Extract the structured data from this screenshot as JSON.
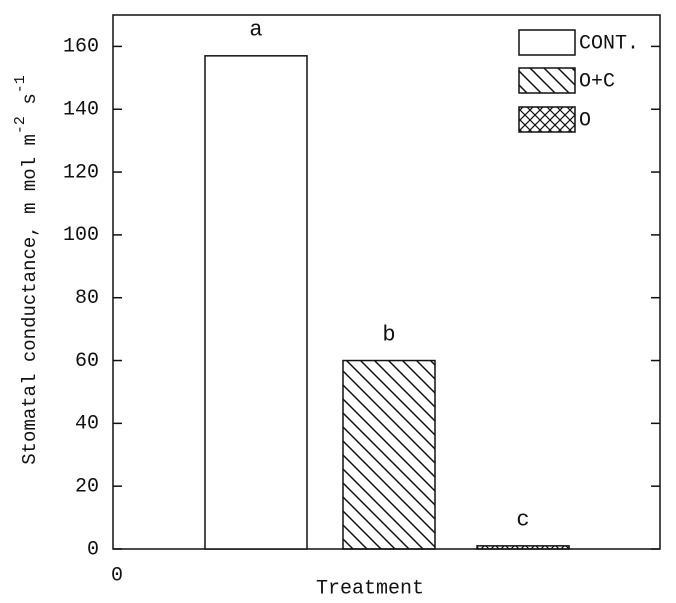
{
  "chart_data": {
    "type": "bar",
    "ylabel": [
      {
        "text": "Stomatal conductance, m mol m"
      },
      {
        "text": "-2",
        "sup": true
      },
      {
        "text": " s"
      },
      {
        "text": "-1",
        "sup": true
      }
    ],
    "xlabel": "Treatment",
    "xticks": [
      0
    ],
    "ylim": [
      0,
      170
    ],
    "yticks": [
      0,
      20,
      40,
      60,
      80,
      100,
      120,
      140,
      160
    ],
    "legend": "top-right",
    "series": [
      {
        "name": "CONT.",
        "pattern": "none",
        "color": "#ffffff",
        "values": [
          157
        ],
        "label": "a"
      },
      {
        "name": "O+C",
        "pattern": "hatch",
        "color": "#111111",
        "values": [
          60
        ],
        "label": "b"
      },
      {
        "name": "O",
        "pattern": "crosshatch",
        "color": "#111111",
        "values": [
          1
        ],
        "label": "c"
      }
    ]
  }
}
